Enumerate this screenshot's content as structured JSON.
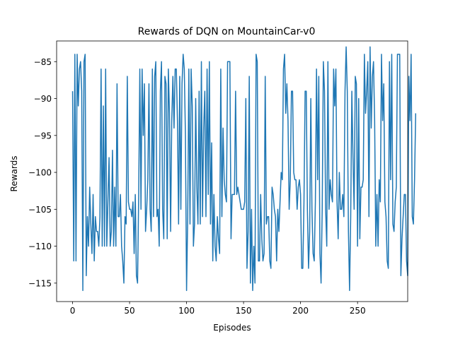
{
  "chart_data": {
    "type": "line",
    "title": "Rewards of DQN on MountainCar-v0",
    "xlabel": "Episodes",
    "ylabel": "Rewards",
    "xlim": [
      -14,
      294
    ],
    "ylim": [
      -117.5,
      -82.2
    ],
    "xticks": [
      0,
      50,
      100,
      150,
      200,
      250
    ],
    "yticks": [
      -85,
      -90,
      -95,
      -100,
      -105,
      -110,
      -115
    ],
    "grid": false,
    "series_color": "#1f77b4",
    "series": [
      {
        "values": [
          -89,
          -112,
          -84,
          -112,
          -84,
          -91,
          -86,
          -85,
          -89,
          -116,
          -85,
          -84,
          -114,
          -106,
          -110,
          -102,
          -107,
          -111,
          -103,
          -112,
          -106,
          -108,
          -108,
          -110,
          -106,
          -86,
          -110,
          -91,
          -110,
          -86,
          -110,
          -104,
          -98,
          -110,
          -108,
          -97,
          -110,
          -102,
          -110,
          -88,
          -106,
          -106,
          -103,
          -110,
          -112,
          -115,
          -106,
          -107,
          -87,
          -104,
          -105,
          -105,
          -106,
          -104,
          -111,
          -103,
          -114,
          -115,
          -103,
          -86,
          -105,
          -86,
          -95,
          -88,
          -108,
          -105,
          -101,
          -88,
          -105,
          -108,
          -86,
          -106,
          -87,
          -85,
          -106,
          -105,
          -110,
          -89,
          -85,
          -105,
          -109,
          -87,
          -88,
          -109,
          -86,
          -92,
          -108,
          -93,
          -87,
          -94,
          -86,
          -86,
          -93,
          -107,
          -87,
          -105,
          -88,
          -84,
          -86,
          -95,
          -116,
          -106,
          -86,
          -107,
          -86,
          -91,
          -110,
          -107,
          -90,
          -102,
          -107,
          -89,
          -107,
          -85,
          -106,
          -94,
          -89,
          -106,
          -86,
          -103,
          -85,
          -107,
          -96,
          -112,
          -103,
          -110,
          -112,
          -106,
          -109,
          -111,
          -86,
          -106,
          -94,
          -101,
          -103,
          -104,
          -85,
          -85,
          -85,
          -109,
          -103,
          -103,
          -103,
          -89,
          -103,
          -102,
          -103,
          -104,
          -105,
          -105,
          -105,
          -104,
          -90,
          -113,
          -108,
          -87,
          -115,
          -105,
          -116,
          -110,
          -115,
          -84,
          -85,
          -112,
          -112,
          -103,
          -109,
          -112,
          -111,
          -87,
          -107,
          -106,
          -106,
          -112,
          -113,
          -102,
          -103,
          -105,
          -106,
          -112,
          -105,
          -108,
          -104,
          -100,
          -101,
          -86,
          -84,
          -92,
          -88,
          -93,
          -105,
          -101,
          -89,
          -89,
          -100,
          -101,
          -101,
          -105,
          -102,
          -101,
          -103,
          -113,
          -113,
          -104,
          -89,
          -89,
          -105,
          -113,
          -108,
          -90,
          -105,
          -111,
          -112,
          -104,
          -86,
          -101,
          -87,
          -111,
          -115,
          -105,
          -85,
          -89,
          -105,
          -110,
          -85,
          -105,
          -101,
          -103,
          -104,
          -86,
          -91,
          -86,
          -104,
          -109,
          -100,
          -105,
          -105,
          -103,
          -106,
          -89,
          -83,
          -89,
          -108,
          -116,
          -106,
          -89,
          -98,
          -105,
          -87,
          -88,
          -110,
          -90,
          -109,
          -102,
          -102,
          -101,
          -84,
          -92,
          -89,
          -85,
          -106,
          -83,
          -94,
          -87,
          -85,
          -93,
          -110,
          -103,
          -110,
          -101,
          -104,
          -84,
          -93,
          -88,
          -104,
          -106,
          -112,
          -113,
          -85,
          -101,
          -84,
          -107,
          -108,
          -104,
          -102,
          -84,
          -84,
          -84,
          -114,
          -109,
          -106,
          -103,
          -103,
          -112,
          -114,
          -87,
          -93,
          -84,
          -106,
          -107,
          -101,
          -92
        ]
      }
    ]
  }
}
